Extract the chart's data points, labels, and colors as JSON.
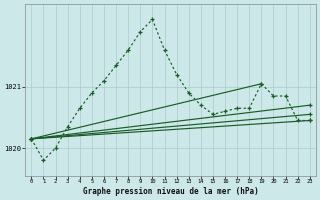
{
  "title": "Graphe pression niveau de la mer (hPa)",
  "bg_color": "#cce8e8",
  "grid_color": "#aacccc",
  "line_color": "#1a5c28",
  "xlim": [
    -0.5,
    23.5
  ],
  "ylim": [
    1019.55,
    1022.35
  ],
  "yticks": [
    1020,
    1021
  ],
  "xticks": [
    0,
    1,
    2,
    3,
    4,
    5,
    6,
    7,
    8,
    9,
    10,
    11,
    12,
    13,
    14,
    15,
    16,
    17,
    18,
    19,
    20,
    21,
    22,
    23
  ],
  "curve1_x": [
    0,
    1,
    2,
    3,
    4,
    5,
    6,
    7,
    8,
    9,
    10,
    11,
    12,
    13,
    14,
    15,
    16,
    17,
    18,
    19,
    20,
    21,
    22,
    23
  ],
  "curve1_y": [
    1020.15,
    1019.8,
    1020.0,
    1020.35,
    1020.65,
    1020.9,
    1021.1,
    1021.35,
    1021.6,
    1021.9,
    1022.1,
    1021.6,
    1021.2,
    1020.9,
    1020.7,
    1020.55,
    1020.6,
    1020.65,
    1020.65,
    1021.05,
    1020.85,
    1020.85,
    1020.45,
    1020.45
  ],
  "straight_lines": [
    {
      "x": [
        0,
        23
      ],
      "y": [
        1020.15,
        1020.45
      ]
    },
    {
      "x": [
        0,
        23
      ],
      "y": [
        1020.15,
        1020.55
      ]
    },
    {
      "x": [
        0,
        23
      ],
      "y": [
        1020.15,
        1020.7
      ]
    },
    {
      "x": [
        0,
        19
      ],
      "y": [
        1020.15,
        1021.05
      ]
    }
  ]
}
